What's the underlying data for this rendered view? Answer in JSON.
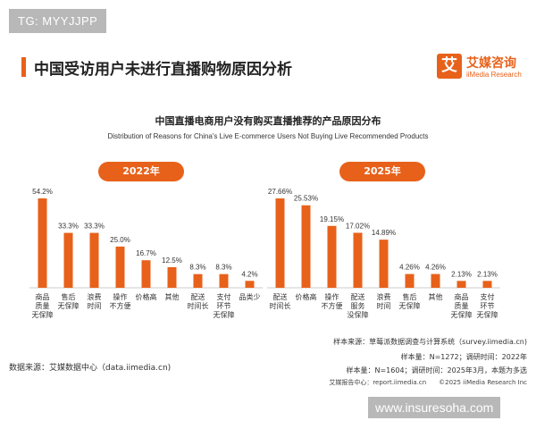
{
  "badge": "TG: MYYJJPP",
  "header": {
    "title": "中国受访用户未进行直播购物原因分析",
    "logo_mark": "艾",
    "logo_cn": "艾媒咨询",
    "logo_en": "iiMedia Research"
  },
  "chart_data": [
    {
      "type": "bar",
      "title": "中国直播电商用户没有购买直播推荐的产品原因分布",
      "subtitle": "Distribution of Reasons for China's Live E-commerce Users Not Buying Live Recommended Products",
      "panel_label": "2022年",
      "categories": [
        "商品\n质量\n无保障",
        "售后\n无保障",
        "浪费\n时间",
        "操作\n不方便",
        "价格高",
        "其他",
        "配送\n时间长",
        "支付\n环节\n无保障",
        "品类少"
      ],
      "values": [
        54.2,
        33.3,
        33.3,
        25.0,
        16.7,
        12.5,
        8.3,
        8.3,
        4.2
      ],
      "value_labels": [
        "54.2%",
        "33.3%",
        "33.3%",
        "25.0%",
        "16.7%",
        "12.5%",
        "8.3%",
        "8.3%",
        "4.2%"
      ],
      "ylim": [
        0,
        60
      ],
      "color": "#e8611a",
      "grid": false
    },
    {
      "type": "bar",
      "panel_label": "2025年",
      "categories": [
        "配送\n时间长",
        "价格高",
        "操作\n不方便",
        "配送\n服务\n没保障",
        "浪费\n时间",
        "售后\n无保障",
        "其他",
        "商品\n质量\n无保障",
        "支付\n环节\n无保障"
      ],
      "values": [
        27.66,
        25.53,
        19.15,
        17.02,
        14.89,
        4.26,
        4.26,
        2.13,
        2.13
      ],
      "value_labels": [
        "27.66%",
        "25.53%",
        "19.15%",
        "17.02%",
        "14.89%",
        "4.26%",
        "4.26%",
        "2.13%",
        "2.13%"
      ],
      "ylim": [
        0,
        30
      ],
      "color": "#e8611a",
      "grid": false
    }
  ],
  "meta": {
    "line1": "样本来源：草莓派数据调查与计算系统（survey.iimedia.cn)",
    "line2": "样本量：N=1272；调研时间：2022年",
    "line3": "样本量：N=1604；调研时间：2025年3月，本题为多选"
  },
  "source": "数据来源：艾媒数据中心（data.iimedia.cn)",
  "footer": "艾媒报告中心：report.iimedia.cn　　©2025  iiMedia Research  Inc",
  "watermark": "www.insuresoha.com"
}
